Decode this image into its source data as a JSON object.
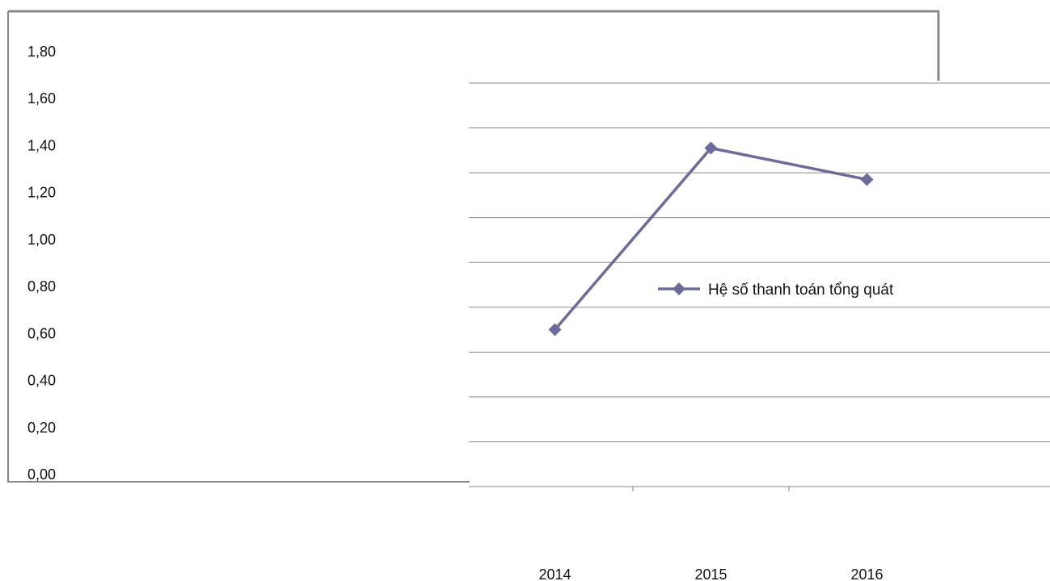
{
  "chart_data": {
    "type": "line",
    "categories": [
      "2014",
      "2015",
      "2016"
    ],
    "series": [
      {
        "name": "Hệ số thanh toán tổng quát",
        "values": [
          0.7,
          1.51,
          1.37
        ]
      }
    ],
    "y_tick_labels": [
      "0,00",
      "0,20",
      "0,40",
      "0,60",
      "0,80",
      "1,00",
      "1,20",
      "1,40",
      "1,60",
      "1,80"
    ],
    "ylim": [
      0,
      1.8
    ],
    "grid": true,
    "legend": "right",
    "colors": {
      "series": "#6b6b9e",
      "axis": "#888888",
      "grid": "#8a8a8a"
    }
  }
}
